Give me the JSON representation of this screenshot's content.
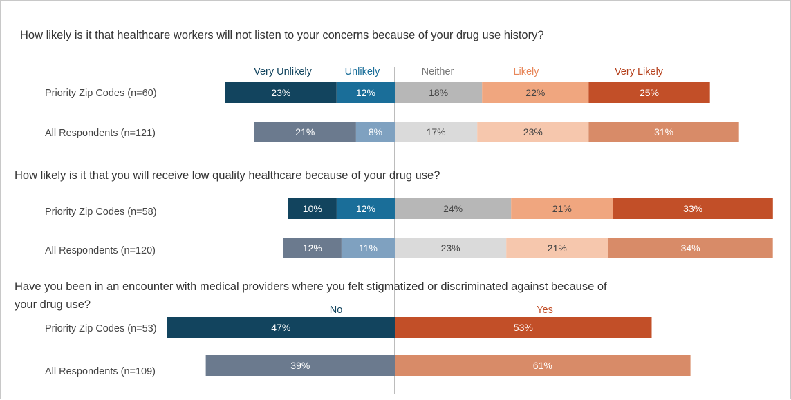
{
  "colors": {
    "very_unlikely": "#12445e",
    "unlikely": "#1a6e99",
    "neither": "#b7b7b7",
    "likely": "#f0a67f",
    "very_likely": "#c24f28",
    "very_unlikely_all": "#6b7a8e",
    "unlikely_all": "#7fa1c0",
    "neither_all": "#dadada",
    "likely_all": "#f6c7ad",
    "very_likely_all": "#d88b68",
    "no": "#12445e",
    "yes": "#c24f28",
    "no_all": "#6b7a8e",
    "yes_all": "#d88b68",
    "legend_very_unlikely": "#12445e",
    "legend_unlikely": "#1a6e99",
    "legend_neither": "#777777",
    "legend_likely": "#e8875a",
    "legend_very_likely": "#b5401c",
    "legend_no": "#12445e",
    "legend_yes": "#c24f28"
  },
  "chart_data": [
    {
      "type": "bar",
      "stacking": "diverging",
      "title": "How likely is it that healthcare workers will not listen to your concerns because of your drug use history?",
      "legend": [
        "Very Unlikely",
        "Unlikely",
        "Neither",
        "Likely",
        "Very Likely"
      ],
      "rows": [
        {
          "label": "Priority Zip Codes (n=60)",
          "values": [
            23,
            12,
            18,
            22,
            25
          ],
          "value_labels": [
            "23%",
            "12%",
            "18%",
            "22%",
            "25%"
          ]
        },
        {
          "label": "All Respondents (n=121)",
          "values": [
            21,
            8,
            17,
            23,
            31
          ],
          "value_labels": [
            "21%",
            "8%",
            "17%",
            "23%",
            "31%"
          ]
        }
      ]
    },
    {
      "type": "bar",
      "stacking": "diverging",
      "title": "How likely is it that you will receive low quality healthcare because of your drug use?",
      "legend": [
        "Very Unlikely",
        "Unlikely",
        "Neither",
        "Likely",
        "Very Likely"
      ],
      "rows": [
        {
          "label": "Priority Zip Codes (n=58)",
          "values": [
            10,
            12,
            24,
            21,
            33
          ],
          "value_labels": [
            "10%",
            "12%",
            "24%",
            "21%",
            "33%"
          ]
        },
        {
          "label": "All Respondents (n=120)",
          "values": [
            12,
            11,
            23,
            21,
            34
          ],
          "value_labels": [
            "12%",
            "11%",
            "23%",
            "21%",
            "34%"
          ]
        }
      ]
    },
    {
      "type": "bar",
      "stacking": "diverging",
      "title_lines": [
        "Have you been in an encounter with medical providers where you felt stigmatized or discriminated against because of",
        "your drug use?"
      ],
      "legend": [
        "No",
        "Yes"
      ],
      "rows": [
        {
          "label": "Priority Zip Codes (n=53)",
          "values": [
            47,
            53
          ],
          "value_labels": [
            "47%",
            "53%"
          ]
        },
        {
          "label": "All Respondents (n=109)",
          "values": [
            39,
            61
          ],
          "value_labels": [
            "39%",
            "61%"
          ]
        }
      ]
    }
  ]
}
